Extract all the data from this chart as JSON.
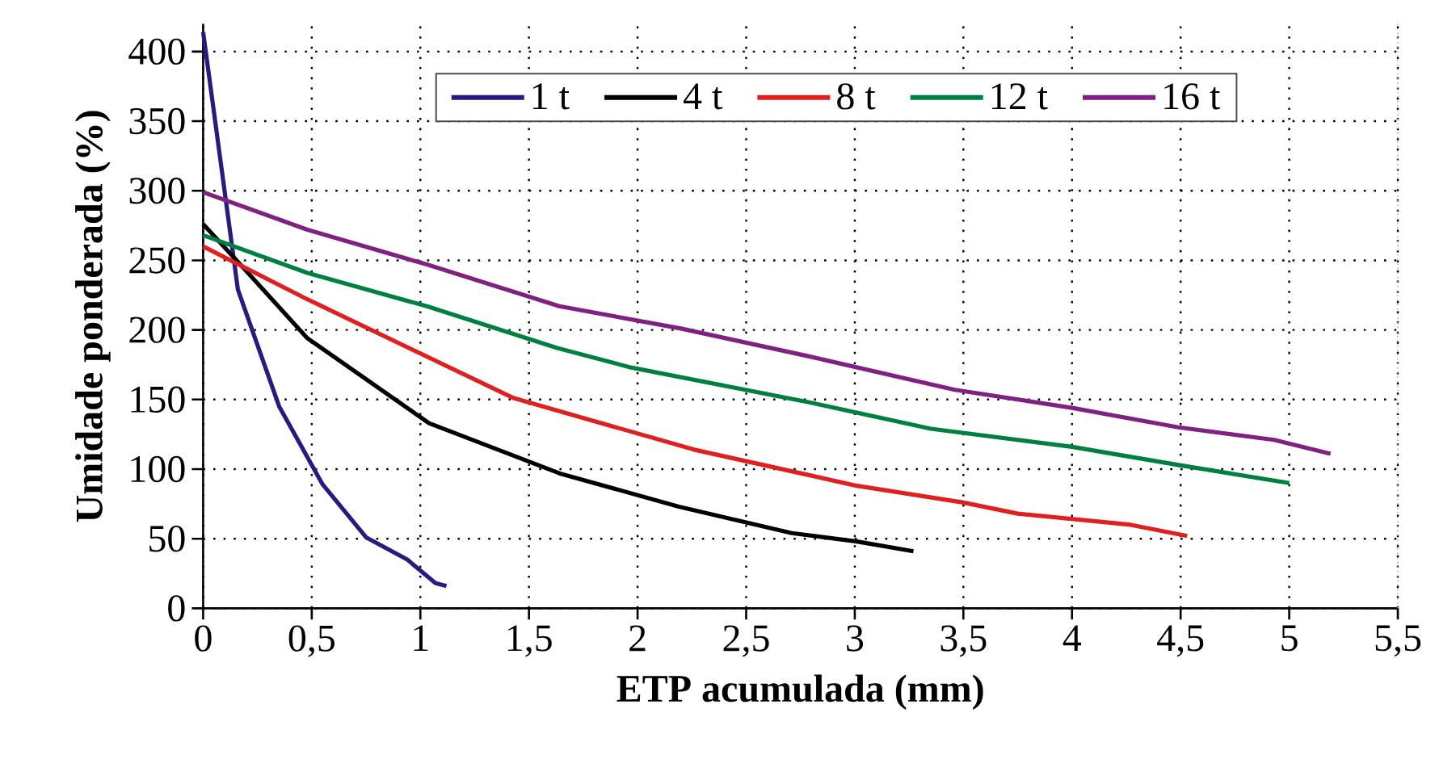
{
  "chart_data": {
    "type": "line",
    "xlabel": "ETP acumulada (mm)",
    "ylabel": "Umidade ponderada (%)",
    "xlim": [
      0,
      5.5
    ],
    "ylim": [
      0,
      420
    ],
    "xticks": [
      0,
      {
        "value": 0.5,
        "label": "0,5"
      },
      1,
      {
        "value": 1.5,
        "label": "1,5"
      },
      2,
      {
        "value": 2.5,
        "label": "2,5"
      },
      3,
      {
        "value": 3.5,
        "label": "3,5"
      },
      4,
      {
        "value": 4.5,
        "label": "4,5"
      },
      5,
      {
        "value": 5.5,
        "label": "5,5"
      }
    ],
    "yticks": [
      0,
      50,
      100,
      150,
      200,
      250,
      300,
      350,
      400
    ],
    "grid": true,
    "legend": "top",
    "marker": "none",
    "line_style": "solid",
    "series": [
      {
        "name": "1 t",
        "color": "#2a1a80",
        "x": [
          0,
          0.16,
          0.35,
          0.55,
          0.75,
          0.94,
          1.07,
          1.12
        ],
        "values": [
          414,
          229,
          145,
          89,
          51,
          35,
          18,
          16
        ]
      },
      {
        "name": "4 t",
        "color": "#000000",
        "x": [
          0,
          0.16,
          0.48,
          1.04,
          1.64,
          2.19,
          2.71,
          3.01,
          3.27
        ],
        "values": [
          276,
          249,
          194,
          133,
          97,
          73,
          54,
          48,
          41
        ]
      },
      {
        "name": "8 t",
        "color": "#e02020",
        "x": [
          0,
          0.48,
          1.43,
          2.26,
          2.78,
          3.01,
          3.5,
          3.75,
          4.27,
          4.53
        ],
        "values": [
          260,
          222,
          151,
          114,
          96,
          88,
          76,
          68,
          60,
          52
        ]
      },
      {
        "name": "12 t",
        "color": "#008040",
        "x": [
          0,
          0.48,
          1.03,
          1.63,
          1.97,
          2.79,
          3.35,
          4.0,
          4.49,
          5.0
        ],
        "values": [
          268,
          241,
          217,
          187,
          173,
          148,
          129,
          116,
          103,
          90
        ]
      },
      {
        "name": "16 t",
        "color": "#802080",
        "x": [
          0,
          0.48,
          1.03,
          1.64,
          2.2,
          2.79,
          3.46,
          4.0,
          4.49,
          4.93,
          5.19
        ],
        "values": [
          299,
          272,
          247,
          217,
          201,
          181,
          157,
          144,
          130,
          121,
          111
        ]
      }
    ]
  }
}
